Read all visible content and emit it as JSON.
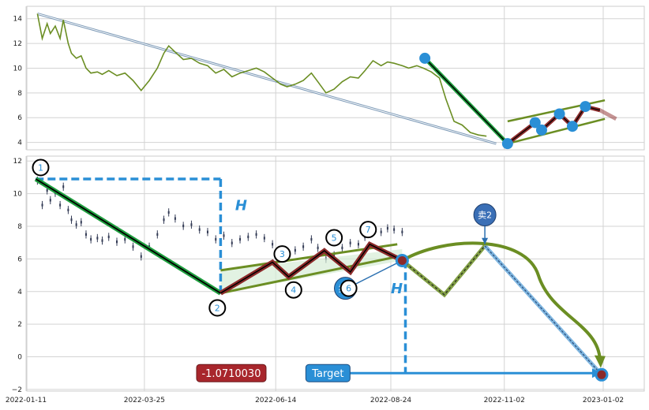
{
  "chart_data": [
    {
      "type": "line",
      "panel": "top",
      "ylim": [
        3.4,
        15.0
      ],
      "y_ticks": [
        4,
        6,
        8,
        10,
        12,
        14
      ],
      "grid": true,
      "series": [
        {
          "color": "#6b8e23",
          "points": [
            [
              "2022-01-18",
              14.4
            ],
            [
              "2022-01-21",
              12.4
            ],
            [
              "2022-01-24",
              13.6
            ],
            [
              "2022-01-26",
              12.8
            ],
            [
              "2022-01-29",
              13.4
            ],
            [
              "2022-02-01",
              12.4
            ],
            [
              "2022-02-03",
              13.9
            ],
            [
              "2022-02-06",
              12.0
            ],
            [
              "2022-02-08",
              11.2
            ],
            [
              "2022-02-11",
              10.8
            ],
            [
              "2022-02-14",
              11.0
            ],
            [
              "2022-02-17",
              10.0
            ],
            [
              "2022-02-20",
              9.6
            ],
            [
              "2022-02-24",
              9.7
            ],
            [
              "2022-02-27",
              9.5
            ],
            [
              "2022-03-03",
              9.8
            ],
            [
              "2022-03-08",
              9.4
            ],
            [
              "2022-03-13",
              9.6
            ],
            [
              "2022-03-18",
              9.0
            ],
            [
              "2022-03-23",
              8.2
            ],
            [
              "2022-03-28",
              9.0
            ],
            [
              "2022-04-02",
              10.0
            ],
            [
              "2022-04-06",
              11.2
            ],
            [
              "2022-04-09",
              11.8
            ],
            [
              "2022-04-13",
              11.3
            ],
            [
              "2022-04-18",
              10.7
            ],
            [
              "2022-04-23",
              10.8
            ],
            [
              "2022-04-28",
              10.4
            ],
            [
              "2022-05-03",
              10.2
            ],
            [
              "2022-05-08",
              9.6
            ],
            [
              "2022-05-13",
              9.9
            ],
            [
              "2022-05-18",
              9.3
            ],
            [
              "2022-05-23",
              9.6
            ],
            [
              "2022-05-28",
              9.8
            ],
            [
              "2022-06-02",
              10.0
            ],
            [
              "2022-06-07",
              9.7
            ],
            [
              "2022-06-12",
              9.2
            ],
            [
              "2022-06-17",
              8.7
            ],
            [
              "2022-06-21",
              8.5
            ],
            [
              "2022-06-26",
              8.7
            ],
            [
              "2022-07-01",
              9.0
            ],
            [
              "2022-07-06",
              9.6
            ],
            [
              "2022-07-10",
              8.9
            ],
            [
              "2022-07-15",
              8.0
            ],
            [
              "2022-07-20",
              8.3
            ],
            [
              "2022-07-25",
              8.9
            ],
            [
              "2022-07-30",
              9.3
            ],
            [
              "2022-08-04",
              9.2
            ],
            [
              "2022-08-08",
              9.8
            ],
            [
              "2022-08-13",
              10.6
            ],
            [
              "2022-08-18",
              10.2
            ],
            [
              "2022-08-22",
              10.5
            ],
            [
              "2022-08-26",
              10.4
            ],
            [
              "2022-08-31",
              10.2
            ],
            [
              "2022-09-04",
              10.0
            ],
            [
              "2022-09-09",
              10.2
            ],
            [
              "2022-09-13",
              10.0
            ],
            [
              "2022-09-18",
              9.7
            ],
            [
              "2022-09-23",
              9.2
            ],
            [
              "2022-09-27",
              7.5
            ],
            [
              "2022-10-02",
              5.7
            ],
            [
              "2022-10-07",
              5.4
            ],
            [
              "2022-10-12",
              4.8
            ],
            [
              "2022-10-17",
              4.6
            ],
            [
              "2022-10-22",
              4.5
            ]
          ]
        }
      ],
      "overlays": {
        "thin_line": [
          [
            "2022-01-18",
            14.4
          ],
          [
            "2022-10-28",
            3.9
          ]
        ],
        "down_leg": [
          [
            "2022-09-14",
            10.8
          ],
          [
            "2022-11-04",
            3.9
          ]
        ],
        "zigzag": [
          [
            "2022-11-04",
            3.9
          ],
          [
            "2022-11-21",
            5.6
          ],
          [
            "2022-11-25",
            5.0
          ],
          [
            "2022-12-06",
            6.3
          ],
          [
            "2022-12-14",
            5.3
          ],
          [
            "2022-12-22",
            6.9
          ],
          [
            "2022-12-31",
            6.6
          ]
        ],
        "zigzag_dots": [
          [
            "2022-11-04",
            3.9
          ],
          [
            "2022-11-21",
            5.6
          ],
          [
            "2022-11-25",
            5.0
          ],
          [
            "2022-12-06",
            6.3
          ],
          [
            "2022-12-14",
            5.3
          ],
          [
            "2022-12-22",
            6.9
          ]
        ],
        "dots": [
          [
            "2022-09-14",
            10.8
          ]
        ],
        "projection": [
          [
            "2022-12-31",
            6.6
          ],
          [
            "2023-01-10",
            5.9
          ]
        ],
        "channel_upper": [
          [
            "2022-11-04",
            5.7
          ],
          [
            "2023-01-03",
            7.4
          ]
        ],
        "channel_lower": [
          [
            "2022-11-04",
            3.9
          ],
          [
            "2023-01-03",
            5.9
          ]
        ]
      },
      "colors": {
        "price": "#6b8e23",
        "thin_line": "#6f8faf",
        "down_leg": "#1e9e3e",
        "zigzag": "#8b2a2a",
        "channel": "#6b8e23",
        "dot": "#2a8fd6"
      }
    },
    {
      "type": "candlestick",
      "panel": "bottom",
      "ylim": [
        -2.1,
        12.3
      ],
      "y_ticks": [
        -2,
        0,
        2,
        4,
        6,
        8,
        10,
        12
      ],
      "x_ticks": [
        "2022-01-11",
        "2022-03-25",
        "2022-06-14",
        "2022-08-24",
        "2022-11-02",
        "2023-01-02"
      ],
      "xlim": [
        "2022-01-11",
        "2023-01-08"
      ],
      "grid": true,
      "candles_color": "#333b55",
      "pattern_points": [
        {
          "label": "1",
          "x": "2022-01-17",
          "y": 10.9
        },
        {
          "label": "2",
          "x": "2022-05-11",
          "y": 3.9
        },
        {
          "label": "3",
          "x": "2022-06-12",
          "y": 5.8
        },
        {
          "label": "4",
          "x": "2022-06-22",
          "y": 4.9
        },
        {
          "label": "5",
          "x": "2022-07-14",
          "y": 6.5
        },
        {
          "label": "6",
          "x": "2022-07-30",
          "y": 5.2
        },
        {
          "label": "7",
          "x": "2022-08-11",
          "y": 6.9
        }
      ],
      "label_positions": {
        "1": [
          "2022-01-20",
          11.6
        ],
        "2": [
          "2022-05-09",
          3.0
        ],
        "3": [
          "2022-06-18",
          6.3
        ],
        "4": [
          "2022-06-25",
          4.1
        ],
        "5": [
          "2022-07-20",
          7.3
        ],
        "6": [
          "2022-07-29",
          4.2
        ],
        "7": [
          "2022-08-10",
          7.8
        ]
      },
      "legs": {
        "down": [
          [
            "2022-01-17",
            10.9
          ],
          [
            "2022-05-11",
            3.9
          ]
        ],
        "zigzag": [
          [
            "2022-05-11",
            3.9
          ],
          [
            "2022-06-12",
            5.8
          ],
          [
            "2022-06-22",
            4.9
          ],
          [
            "2022-07-14",
            6.5
          ],
          [
            "2022-07-30",
            5.2
          ],
          [
            "2022-08-11",
            6.9
          ],
          [
            "2022-08-31",
            5.9
          ]
        ],
        "triangle_fill": [
          [
            "2022-05-11",
            3.9
          ],
          [
            "2022-08-31",
            5.9
          ],
          [
            "2022-08-31",
            6.6
          ],
          [
            "2022-05-11",
            5.3
          ]
        ],
        "channel_upper": [
          [
            "2022-05-11",
            5.3
          ],
          [
            "2022-08-28",
            6.9
          ]
        ],
        "channel_lower": [
          [
            "2022-05-11",
            3.9
          ],
          [
            "2022-08-31",
            6.2
          ]
        ],
        "projection_zigzag": [
          [
            "2022-08-31",
            5.9
          ],
          [
            "2022-09-26",
            3.8
          ],
          [
            "2022-10-21",
            6.8
          ]
        ],
        "curve": [
          [
            "2022-08-31",
            5.9
          ],
          [
            "2022-09-26",
            7.0
          ],
          [
            "2022-10-21",
            6.8
          ],
          [
            "2022-11-23",
            5.0
          ],
          [
            "2022-12-24",
            1.0
          ],
          [
            "2023-01-01",
            -1.1
          ]
        ],
        "sell_line": [
          [
            "2022-10-21",
            6.8
          ],
          [
            "2023-01-01",
            -1.1
          ]
        ],
        "height_ref_horizontal": [
          [
            "2022-01-17",
            10.9
          ],
          [
            "2022-05-11",
            10.9
          ]
        ],
        "height_ref_vertical": [
          [
            "2022-05-11",
            10.9
          ],
          [
            "2022-05-11",
            3.9
          ]
        ],
        "target_vertical": [
          [
            "2022-09-02",
            5.9
          ],
          [
            "2022-09-02",
            -1.0
          ]
        ],
        "target_horizontal": [
          [
            "2022-08-31",
            -1.0
          ],
          [
            "2023-01-01",
            -1.0
          ]
        ],
        "sell1_arrow": [
          [
            "2022-07-28",
            4.2
          ],
          [
            "2022-08-29",
            5.8
          ]
        ],
        "sell2_arrow": [
          [
            "2022-10-21",
            8.7
          ],
          [
            "2022-10-21",
            6.9
          ]
        ],
        "target_arrow_start": [
          [
            "2022-07-27",
            -1.0
          ]
        ]
      },
      "markers": {
        "sell1": {
          "label": "卖1",
          "x": "2022-07-27",
          "y": 4.2
        },
        "sell2": {
          "label": "卖2",
          "x": "2022-10-21",
          "y": 8.7
        },
        "entry": {
          "x": "2022-08-31",
          "y": 5.9
        },
        "target": {
          "x": "2023-01-01",
          "y": -1.1
        }
      },
      "h_labels": [
        {
          "text": "H",
          "x": "2022-05-20",
          "y": 9.0
        },
        {
          "text": "H",
          "x": "2022-08-24",
          "y": 3.9
        }
      ],
      "value_box": {
        "text": "-1.0710030",
        "x": "2022-05-03",
        "y": -1.0
      },
      "target_box": {
        "text": "Target",
        "x": "2022-07-05",
        "y": -1.0
      },
      "colors": {
        "down": "#1e9e3e",
        "zigzag": "#8b2a2a",
        "channel": "#6b8e23",
        "dashed": "#2a8fd6",
        "triangle_fill": "#d6ecd6",
        "sell": "#2a8fd6",
        "value_box": "#a8262c",
        "target_box": "#2a8fd6",
        "sell_line": "#7fb6e0"
      }
    }
  ]
}
